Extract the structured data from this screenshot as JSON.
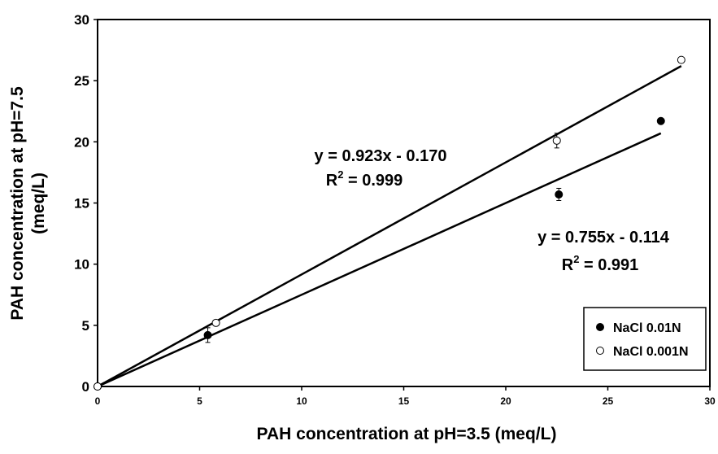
{
  "chart_data": {
    "type": "scatter",
    "xlabel": "PAH concentration at pH=3.5 (meq/L)",
    "ylabel": [
      "PAH concentration at pH=7.5",
      "(meq/L)"
    ],
    "xlim": [
      0,
      30
    ],
    "ylim": [
      0,
      30
    ],
    "xticks": [
      0,
      5,
      10,
      15,
      20,
      25,
      30
    ],
    "yticks": [
      0,
      5,
      10,
      15,
      20,
      25,
      30
    ],
    "legend": "bottom-right",
    "series": [
      {
        "name": "NaCl 0.01N",
        "color": "#000000",
        "filled": true,
        "x": [
          0,
          5.4,
          22.6,
          27.6
        ],
        "values": [
          0,
          4.2,
          15.7,
          21.7
        ],
        "errors": [
          0,
          0.6,
          0.5,
          0.2
        ],
        "trend": {
          "x": [
            0,
            27.6
          ],
          "values": [
            0,
            20.7
          ]
        }
      },
      {
        "name": "NaCl 0.001N",
        "color": "#000000",
        "filled": false,
        "x": [
          0,
          5.8,
          22.5,
          28.6
        ],
        "values": [
          0,
          5.2,
          20.1,
          26.7
        ],
        "errors": [
          0,
          0.2,
          0.6,
          0.2
        ],
        "trend": {
          "x": [
            0,
            28.6
          ],
          "values": [
            0,
            26.2
          ]
        }
      }
    ],
    "annotations": [
      {
        "equation": "y = 0.923x - 0.170",
        "r": "R",
        "sup": "2",
        "r_value": " = 0.999"
      },
      {
        "equation": "y = 0.755x - 0.114",
        "r": "R",
        "sup": "2",
        "r_value": " = 0.991"
      }
    ]
  }
}
